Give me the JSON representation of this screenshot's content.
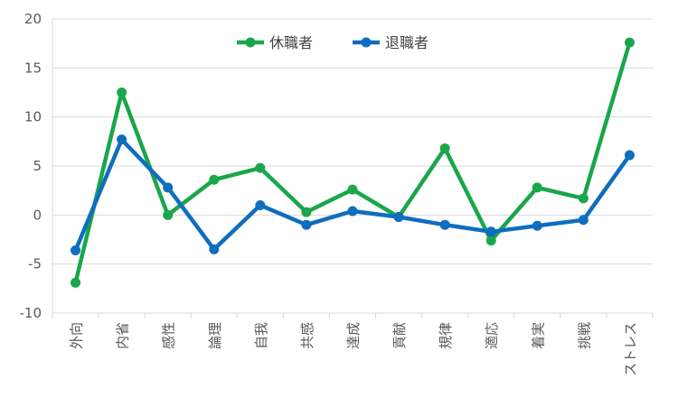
{
  "chart_data": {
    "type": "line",
    "categories": [
      "外向",
      "内省",
      "感性",
      "論理",
      "自我",
      "共感",
      "達成",
      "貢献",
      "規律",
      "適応",
      "着実",
      "挑戦",
      "ストレス"
    ],
    "series": [
      {
        "name": "休職者",
        "color": "#1aa64b",
        "values": [
          -6.9,
          12.5,
          0.0,
          3.6,
          4.8,
          0.3,
          2.6,
          -0.2,
          6.8,
          -2.6,
          2.8,
          1.7,
          17.6
        ]
      },
      {
        "name": "退職者",
        "color": "#0f6dbf",
        "values": [
          -3.6,
          7.7,
          2.8,
          -3.5,
          1.0,
          -1.0,
          0.4,
          -0.2,
          -1.0,
          -1.7,
          -1.1,
          -0.5,
          6.1
        ]
      }
    ],
    "ylim": [
      -10,
      20
    ],
    "yticks": [
      -10,
      -5,
      0,
      5,
      10,
      15,
      20
    ],
    "grid": true,
    "legend_position": "top-center",
    "title": "",
    "xlabel": "",
    "ylabel": ""
  }
}
